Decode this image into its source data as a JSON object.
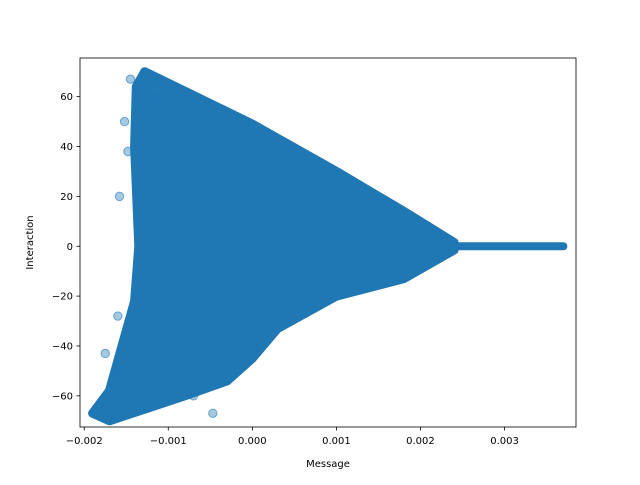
{
  "chart_data": {
    "type": "scatter",
    "title": "",
    "xlabel": "Message",
    "ylabel": "Interaction",
    "xlim": [
      -0.00205,
      0.00385
    ],
    "ylim": [
      -72.5,
      75.5
    ],
    "xticks": [
      -0.002,
      -0.001,
      0.0,
      0.001,
      0.002,
      0.003
    ],
    "xtick_labels": [
      "−0.002",
      "−0.001",
      "0.000",
      "0.001",
      "0.002",
      "0.003"
    ],
    "yticks": [
      -60,
      -40,
      -20,
      0,
      20,
      40,
      60
    ],
    "ytick_labels": [
      "−60",
      "−40",
      "−20",
      "0",
      "20",
      "40",
      "60"
    ],
    "grid": false,
    "marker_color": "#1f77b4",
    "marker_alpha": 0.4,
    "dense_region": {
      "description_values": "dense point cloud bounded by these data-space vertices",
      "vertices": [
        [
          -0.00128,
          70
        ],
        [
          0.0,
          49
        ],
        [
          0.001,
          30
        ],
        [
          0.0018,
          14
        ],
        [
          0.0024,
          1.5
        ],
        [
          0.0024,
          -1.5
        ],
        [
          0.0018,
          -13
        ],
        [
          0.001,
          -20
        ],
        [
          0.0003,
          -33
        ],
        [
          0.0,
          -45
        ],
        [
          -0.0003,
          -54
        ],
        [
          -0.0008,
          -60
        ],
        [
          -0.0017,
          -70
        ],
        [
          -0.0019,
          -67
        ],
        [
          -0.0017,
          -58
        ],
        [
          -0.00155,
          -40
        ],
        [
          -0.0014,
          -22
        ],
        [
          -0.00135,
          0
        ],
        [
          -0.0014,
          40
        ],
        [
          -0.00138,
          64
        ]
      ]
    },
    "tail": {
      "x_start": 0.0024,
      "x_end": 0.0037,
      "y": 0
    },
    "outliers": [
      {
        "x": -0.00145,
        "y": 67
      },
      {
        "x": -0.00047,
        "y": -67
      },
      {
        "x": -0.00115,
        "y": 60
      },
      {
        "x": -0.00175,
        "y": -43
      },
      {
        "x": -0.0016,
        "y": -50
      },
      {
        "x": -0.00152,
        "y": 50
      },
      {
        "x": -0.00158,
        "y": 20
      },
      {
        "x": -0.0016,
        "y": -28
      },
      {
        "x": -0.00148,
        "y": 38
      },
      {
        "x": -0.0012,
        "y": -58
      },
      {
        "x": -0.0007,
        "y": -60
      }
    ]
  }
}
